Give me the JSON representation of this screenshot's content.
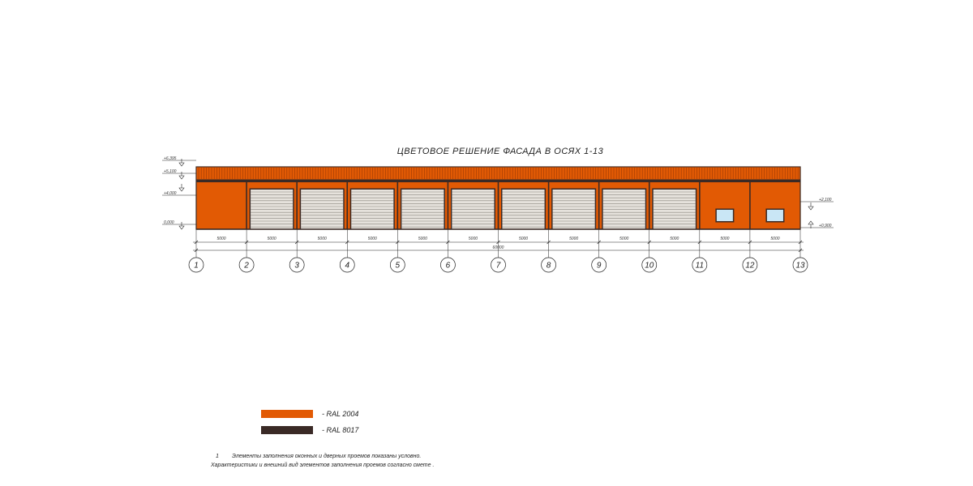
{
  "title": "ЦВЕТОВОЕ РЕШЕНИЕ ФАСАДА  В ОСЯХ 1-13",
  "colors": {
    "ral2004": "#e25a04",
    "ral8017": "#3a2a26",
    "door": "#e6e2dc",
    "window": "#c9e6f5"
  },
  "levels_left": [
    "+6,395",
    "+5,100",
    "+4,000",
    "0,000"
  ],
  "levels_right": [
    "+2,100",
    "+0,900"
  ],
  "spans": [
    "5000",
    "5000",
    "5000",
    "5000",
    "5000",
    "5000",
    "5000",
    "5000",
    "5000",
    "5000",
    "5000",
    "5000"
  ],
  "total_dimension": "60000",
  "axes": [
    "1",
    "2",
    "3",
    "4",
    "5",
    "6",
    "7",
    "8",
    "9",
    "10",
    "11",
    "12",
    "13"
  ],
  "bays": [
    "wall",
    "door",
    "door",
    "door",
    "door",
    "door",
    "door",
    "door",
    "door",
    "door",
    "window",
    "window"
  ],
  "legend": [
    {
      "color": "#e25a04",
      "label": "- RAL 2004"
    },
    {
      "color": "#3a2a26",
      "label": "- RAL 8017"
    }
  ],
  "notes": {
    "number": "1",
    "line1": "Элементы заполнения оконных и дверных проемов показаны условно.",
    "line2": "Характеристики и внешний вид элементов заполнения проемов согласно смете ."
  }
}
